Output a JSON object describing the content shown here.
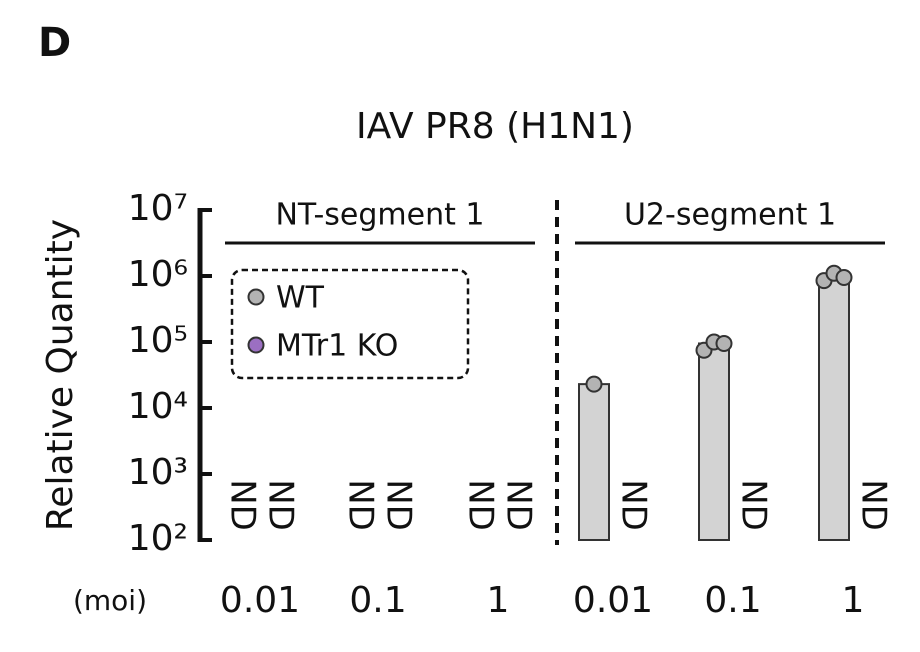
{
  "chart_data": {
    "type": "bar",
    "panel": "D",
    "title": "IAV PR8 (H1N1)",
    "ylabel": "Relative Quantity",
    "x_prefix": "(moi)",
    "log": true,
    "ylim": [
      100,
      10000000
    ],
    "yticks": [
      {
        "value": 100,
        "label": "10²"
      },
      {
        "value": 1000,
        "label": "10³"
      },
      {
        "value": 10000,
        "label": "10⁴"
      },
      {
        "value": 100000,
        "label": "10⁵"
      },
      {
        "value": 1000000,
        "label": "10⁶"
      },
      {
        "value": 10000000,
        "label": "10⁷"
      }
    ],
    "groups": [
      "NT-segment 1",
      "U2-segment 1"
    ],
    "categories": [
      [
        "0.01",
        "0.1",
        "1"
      ],
      [
        "0.01",
        "0.1",
        "1"
      ]
    ],
    "nd_label": "ND",
    "series": [
      {
        "name": "WT",
        "color": "#b3b3b3",
        "values": [
          [
            null,
            null,
            null
          ],
          [
            23000,
            95000,
            950000
          ]
        ],
        "points": [
          [
            [],
            [],
            []
          ],
          [
            [
              23000
            ],
            [
              75000,
              100000,
              95000
            ],
            [
              850000,
              1100000,
              950000
            ]
          ]
        ]
      },
      {
        "name": "MTr1 KO",
        "color": "#9b6fc2",
        "values": [
          [
            null,
            null,
            null
          ],
          [
            null,
            null,
            null
          ]
        ],
        "points": [
          [
            [],
            [],
            []
          ],
          [
            [],
            [],
            []
          ]
        ]
      }
    ]
  }
}
